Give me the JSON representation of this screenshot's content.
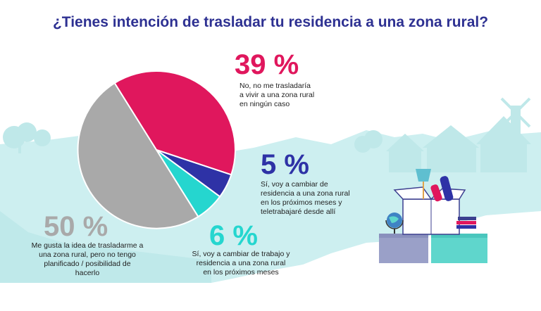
{
  "title": "¿Tienes intención de trasladar tu residencia a una zona rural?",
  "colors": {
    "title": "#2e3192",
    "no": "#e0175d",
    "si_teletrabajo": "#2e32a6",
    "si_cambio_trabajo": "#25d6cf",
    "me_gusta": "#a9a9a9",
    "background_scene": "#cdeff0"
  },
  "chart_data": {
    "type": "pie",
    "title": "¿Tienes intención de trasladar tu residencia a una zona rural?",
    "slices": [
      {
        "key": "no",
        "value": 39,
        "label": "39 %",
        "description": "No, no me trasladaría a vivir a una zona rural en ningún caso",
        "lines": [
          "No, no me trasladaría",
          "a vivir a una zona rural",
          "en ningún caso"
        ]
      },
      {
        "key": "si_teletrabajo",
        "value": 5,
        "label": "5 %",
        "description": "Sí, voy a cambiar de residencia a una zona rural en los próximos meses y teletrabajaré desde allí",
        "lines": [
          "Sí, voy a cambiar de",
          "residencia a una zona rural",
          "en los próximos meses y",
          "teletrabajaré desde allí"
        ]
      },
      {
        "key": "si_cambio_trabajo",
        "value": 6,
        "label": "6 %",
        "description": "Sí, voy a cambiar de trabajo y residencia a una zona rural en los próximos meses",
        "lines": [
          "Sí, voy a cambiar de trabajo y",
          "residencia a una zona rural",
          "en los próximos meses"
        ]
      },
      {
        "key": "me_gusta",
        "value": 50,
        "label": "50 %",
        "description": "Me gusta la idea de trasladarme a una zona rural, pero no tengo planificado / posibilidad de hacerlo",
        "lines": [
          "Me gusta la idea de trasladarme a",
          "una zona rural, pero no tengo",
          "planificado / posibilidad de hacerlo"
        ]
      }
    ]
  }
}
